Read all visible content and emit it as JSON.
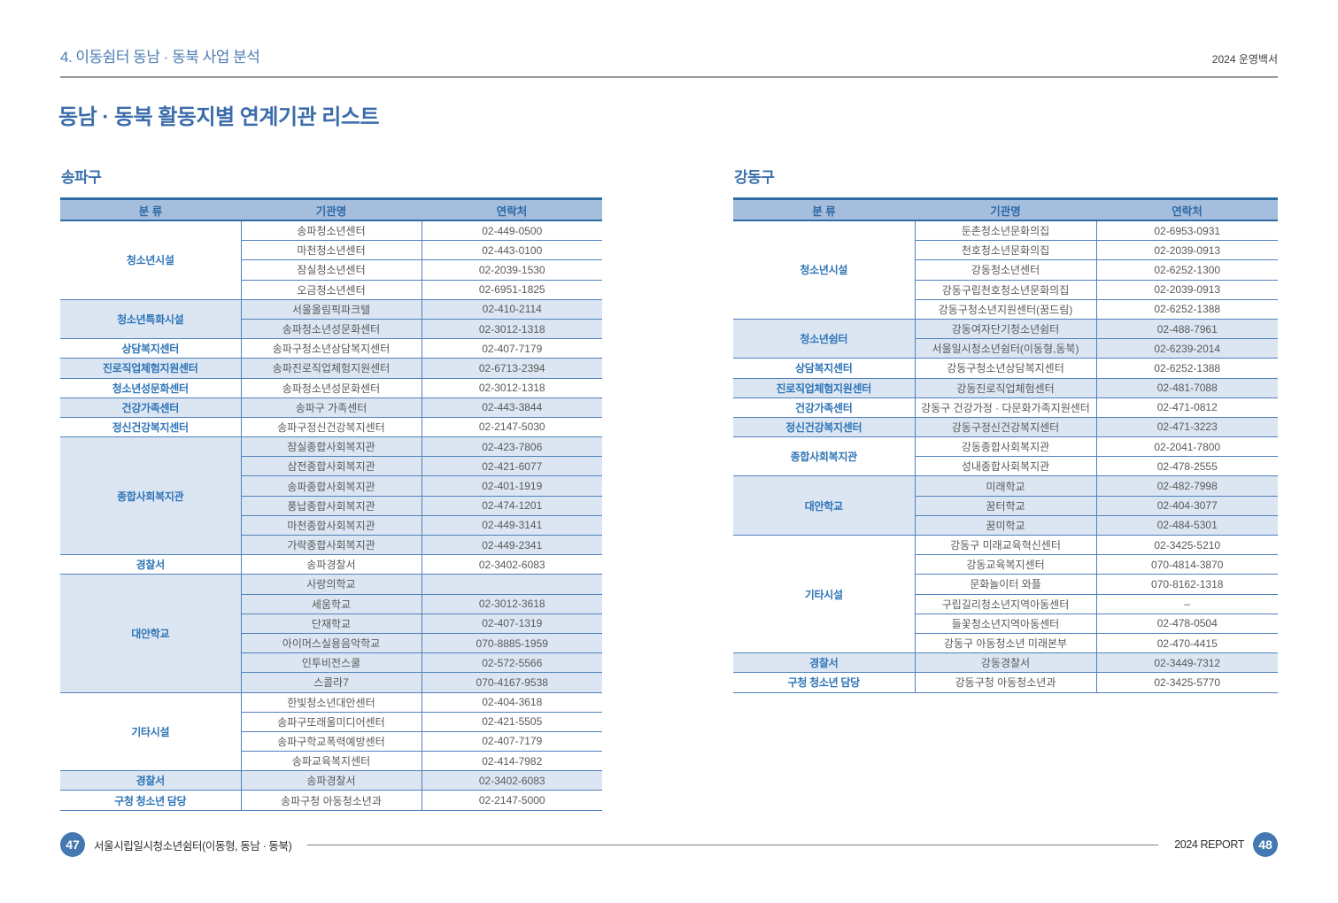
{
  "header": {
    "chapter_title": "4. 이동쉼터 동남 · 동북 사업 분석",
    "edition_label": "2024 운영백서",
    "page_title": "동남 · 동북 활동지별 연계기관 리스트"
  },
  "footer": {
    "left_page_number": "47",
    "left_label": "서울시립일시청소년쉼터(이동형, 동남 · 동북)",
    "right_label": "2024 REPORT",
    "right_page_number": "48"
  },
  "colors": {
    "accent_blue": "#2e74b6",
    "header_band": "#a6bedd",
    "row_border": "#4f81bd",
    "row_tint": "#dce6f3",
    "title_blue": "#3b6cab",
    "body_text": "#595959",
    "badge_blue": "#4478b1",
    "top_rule_gray": "#999a9c"
  },
  "tables": [
    {
      "region": "송파구",
      "columns": [
        "분 류",
        "기관명",
        "연락처"
      ],
      "groups": [
        {
          "category": "청소년시설",
          "rows": [
            [
              "송파청소년센터",
              "02-449-0500"
            ],
            [
              "마천청소년센터",
              "02-443-0100"
            ],
            [
              "잠실청소년센터",
              "02-2039-1530"
            ],
            [
              "오금청소년센터",
              "02-6951-1825"
            ]
          ]
        },
        {
          "category": "청소년특화시설",
          "rows": [
            [
              "서울올림픽파크텔",
              "02-410-2114"
            ],
            [
              "송파청소년성문화센터",
              "02-3012-1318"
            ]
          ]
        },
        {
          "category": "상담복지센터",
          "rows": [
            [
              "송파구청소년상담복지센터",
              "02-407-7179"
            ]
          ]
        },
        {
          "category": "진로직업체험지원센터",
          "rows": [
            [
              "송파진로직업체험지원센터",
              "02-6713-2394"
            ]
          ]
        },
        {
          "category": "청소년성문화센터",
          "rows": [
            [
              "송파청소년성문화센터",
              "02-3012-1318"
            ]
          ]
        },
        {
          "category": "건강가족센터",
          "rows": [
            [
              "송파구 가족센터",
              "02-443-3844"
            ]
          ]
        },
        {
          "category": "정신건강복지센터",
          "rows": [
            [
              "송파구정신건강복지센터",
              "02-2147-5030"
            ]
          ]
        },
        {
          "category": "종합사회복지관",
          "rows": [
            [
              "잠실종합사회복지관",
              "02-423-7806"
            ],
            [
              "삼전종합사회복지관",
              "02-421-6077"
            ],
            [
              "송파종합사회복지관",
              "02-401-1919"
            ],
            [
              "풍납종합사회복지관",
              "02-474-1201"
            ],
            [
              "마천종합사회복지관",
              "02-449-3141"
            ],
            [
              "가락종합사회복지관",
              "02-449-2341"
            ]
          ]
        },
        {
          "category": "경찰서",
          "rows": [
            [
              "송파경찰서",
              "02-3402-6083"
            ]
          ]
        },
        {
          "category": "대안학교",
          "rows": [
            [
              "사랑의학교",
              ""
            ],
            [
              "세움학교",
              "02-3012-3618"
            ],
            [
              "단재학교",
              "02-407-1319"
            ],
            [
              "아이머스실용음악학교",
              "070-8885-1959"
            ],
            [
              "인투비전스쿨",
              "02-572-5566"
            ],
            [
              "스콜라7",
              "070-4167-9538"
            ]
          ]
        },
        {
          "category": "기타시설",
          "rows": [
            [
              "한빛청소년대안센터",
              "02-404-3618"
            ],
            [
              "송파구또래울미디어센터",
              "02-421-5505"
            ],
            [
              "송파구학교폭력예방센터",
              "02-407-7179"
            ],
            [
              "송파교육복지센터",
              "02-414-7982"
            ]
          ]
        },
        {
          "category": "경찰서",
          "rows": [
            [
              "송파경찰서",
              "02-3402-6083"
            ]
          ]
        },
        {
          "category": "구청 청소년 담당",
          "rows": [
            [
              "송파구청 아동청소년과",
              "02-2147-5000"
            ]
          ]
        }
      ]
    },
    {
      "region": "강동구",
      "columns": [
        "분 류",
        "기관명",
        "연락처"
      ],
      "groups": [
        {
          "category": "청소년시설",
          "rows": [
            [
              "둔촌청소년문화의집",
              "02-6953-0931"
            ],
            [
              "천호청소년문화의집",
              "02-2039-0913"
            ],
            [
              "강동청소년센터",
              "02-6252-1300"
            ],
            [
              "강동구립천호청소년문화의집",
              "02-2039-0913"
            ],
            [
              "강동구청소년지원센터(꿈드림)",
              "02-6252-1388"
            ]
          ]
        },
        {
          "category": "청소년쉼터",
          "rows": [
            [
              "강동여자단기청소년쉼터",
              "02-488-7961"
            ],
            [
              "서울일시청소년쉼터(이동형,동북)",
              "02-6239-2014"
            ]
          ]
        },
        {
          "category": "상담복지센터",
          "rows": [
            [
              "강동구청소년상담복지센터",
              "02-6252-1388"
            ]
          ]
        },
        {
          "category": "진로직업체험지원센터",
          "rows": [
            [
              "강동진로직업체험센터",
              "02-481-7088"
            ]
          ]
        },
        {
          "category": "건강가족센터",
          "rows": [
            [
              "강동구 건강가정 · 다문화가족지원센터",
              "02-471-0812"
            ]
          ]
        },
        {
          "category": "정신건강복지센터",
          "rows": [
            [
              "강동구정신건강복지센터",
              "02-471-3223"
            ]
          ]
        },
        {
          "category": "종합사회복지관",
          "rows": [
            [
              "강동종합사회복지관",
              "02-2041-7800"
            ],
            [
              "성내종합사회복지관",
              "02-478-2555"
            ]
          ]
        },
        {
          "category": "대안학교",
          "rows": [
            [
              "미래학교",
              "02-482-7998"
            ],
            [
              "꿈터학교",
              "02-404-3077"
            ],
            [
              "꿈미학교",
              "02-484-5301"
            ]
          ]
        },
        {
          "category": "기타시설",
          "rows": [
            [
              "강동구 미래교육혁신센터",
              "02-3425-5210"
            ],
            [
              "강동교육복지센터",
              "070-4814-3870"
            ],
            [
              "문화놀이터 와플",
              "070-8162-1318"
            ],
            [
              "구립길리청소년지역아동센터",
              "–"
            ],
            [
              "들꽃청소년지역아동센터",
              "02-478-0504"
            ],
            [
              "강동구 아동청소년 미래본부",
              "02-470-4415"
            ]
          ]
        },
        {
          "category": "경찰서",
          "rows": [
            [
              "강동경찰서",
              "02-3449-7312"
            ]
          ]
        },
        {
          "category": "구청 청소년 담당",
          "rows": [
            [
              "강동구청 아동청소년과",
              "02-3425-5770"
            ]
          ]
        }
      ]
    }
  ]
}
